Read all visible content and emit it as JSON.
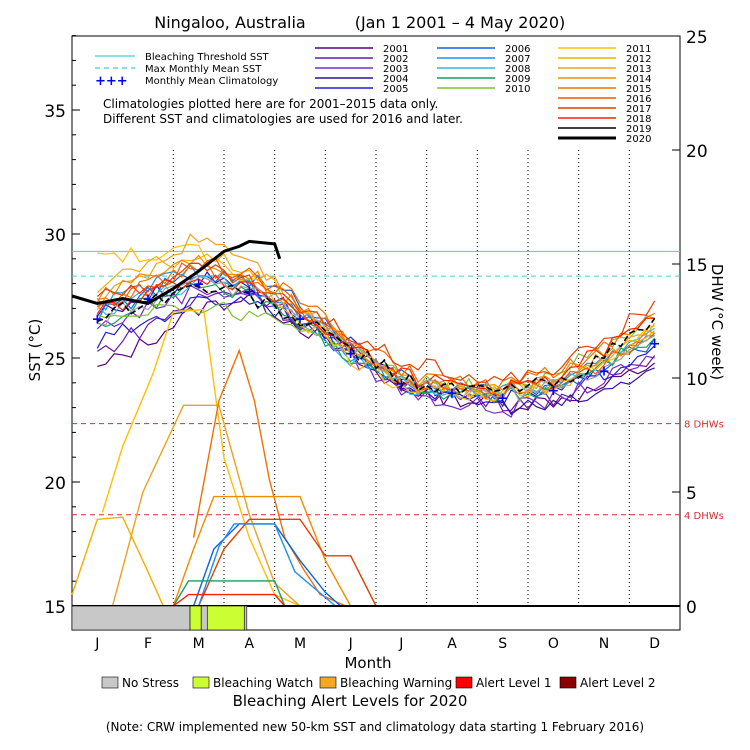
{
  "chart_data": {
    "type": "line",
    "title": "Ningaloo, Australia",
    "date_range": "(Jan 1 2001 – 4 May 2020)",
    "xlabel": "Month",
    "ylabel_left": "SST (°C)",
    "ylabel_right": "DHW (°C week)",
    "months": [
      "J",
      "F",
      "M",
      "A",
      "M",
      "J",
      "J",
      "A",
      "S",
      "O",
      "N",
      "D"
    ],
    "y_left": {
      "min": 15,
      "max": 39,
      "ticks": [
        15,
        20,
        25,
        30,
        35
      ]
    },
    "y_right": {
      "min": 0,
      "max": 25,
      "ticks": [
        0,
        5,
        10,
        15,
        20,
        25
      ]
    },
    "bleaching_threshold_sst": 29.3,
    "max_monthly_mean_sst": 28.3,
    "dhw_thresholds": [
      {
        "value": 8,
        "label": "8 DHWs"
      },
      {
        "value": 4,
        "label": "4 DHWs"
      }
    ],
    "legend_reference": [
      {
        "label": "Bleaching Threshold SST",
        "color": "#40d0d0",
        "style": "solid"
      },
      {
        "label": "Max Monthly Mean SST",
        "color": "#40d0d0",
        "style": "dashed"
      },
      {
        "label": "Monthly Mean Climatology",
        "color": "#0000ff",
        "style": "plus"
      }
    ],
    "note_lines": [
      "Climatologies plotted here are for 2001–2015 data only.",
      "Different SST and climatologies are used for 2016 and later."
    ],
    "climatology": [
      26.6,
      27.4,
      28.0,
      27.7,
      26.6,
      25.2,
      24.0,
      23.6,
      23.4,
      23.7,
      24.5,
      25.6
    ],
    "series": [
      {
        "name": "2001",
        "color": "#5a0080",
        "sst": [
          24.5,
          25.7,
          27.0,
          27.5,
          26.3,
          25.0,
          23.8,
          23.4,
          23.1,
          23.3,
          23.8,
          24.8
        ]
      },
      {
        "name": "2002",
        "color": "#6a1aa8",
        "sst": [
          25.2,
          26.3,
          27.4,
          27.8,
          26.4,
          25.3,
          23.8,
          23.5,
          23.2,
          23.4,
          24.2,
          25.1
        ]
      },
      {
        "name": "2003",
        "color": "#7a2ac8",
        "sst": [
          26.2,
          27.0,
          27.8,
          27.6,
          26.5,
          25.0,
          23.7,
          23.2,
          22.9,
          23.3,
          24.1,
          25.0
        ]
      },
      {
        "name": "2004",
        "color": "#3010a0",
        "sst": [
          26.8,
          27.5,
          28.2,
          28.0,
          26.8,
          25.2,
          24.0,
          23.4,
          23.1,
          23.0,
          23.6,
          24.6
        ]
      },
      {
        "name": "2005",
        "color": "#2020d0",
        "sst": [
          25.6,
          26.5,
          27.3,
          27.4,
          26.6,
          25.5,
          24.1,
          23.5,
          23.3,
          23.6,
          24.4,
          25.5
        ]
      },
      {
        "name": "2006",
        "color": "#1060e0",
        "sst": [
          26.7,
          27.6,
          28.4,
          28.2,
          27.3,
          25.5,
          24.2,
          23.8,
          23.5,
          23.7,
          24.5,
          25.8
        ]
      },
      {
        "name": "2007",
        "color": "#2090f0",
        "sst": [
          27.1,
          27.9,
          28.6,
          27.8,
          26.8,
          25.2,
          24.0,
          23.7,
          23.6,
          23.9,
          24.8,
          25.9
        ]
      },
      {
        "name": "2008",
        "color": "#30b8e0",
        "sst": [
          26.9,
          27.5,
          28.1,
          27.9,
          26.6,
          25.0,
          23.9,
          23.5,
          23.6,
          24.0,
          25.0,
          26.2
        ]
      },
      {
        "name": "2009",
        "color": "#10a060",
        "sst": [
          26.3,
          27.2,
          27.9,
          27.5,
          26.4,
          25.1,
          24.0,
          23.6,
          23.4,
          23.8,
          24.8,
          25.8
        ]
      },
      {
        "name": "2010",
        "color": "#80c030",
        "sst": [
          26.7,
          27.0,
          27.1,
          26.8,
          26.3,
          25.4,
          24.2,
          23.9,
          23.7,
          24.3,
          25.4,
          26.6
        ]
      },
      {
        "name": "2011",
        "color": "#ffc000",
        "sst": [
          29.3,
          29.0,
          29.4,
          28.2,
          26.6,
          25.0,
          23.9,
          23.8,
          23.6,
          24.0,
          24.9,
          26.3
        ]
      },
      {
        "name": "2012",
        "color": "#f0b000",
        "sst": [
          27.8,
          28.7,
          29.1,
          28.6,
          27.0,
          25.4,
          24.0,
          23.6,
          23.5,
          23.8,
          24.8,
          26.1
        ]
      },
      {
        "name": "2013",
        "color": "#f0a020",
        "sst": [
          27.2,
          28.5,
          30.0,
          29.1,
          27.2,
          25.5,
          24.4,
          23.8,
          23.6,
          24.1,
          25.0,
          26.4
        ]
      },
      {
        "name": "2014",
        "color": "#f08c00",
        "sst": [
          27.6,
          28.4,
          29.0,
          28.4,
          27.0,
          25.6,
          24.2,
          23.9,
          23.7,
          24.2,
          25.0,
          26.0
        ]
      },
      {
        "name": "2015",
        "color": "#f07000",
        "sst": [
          27.1,
          28.0,
          28.6,
          28.3,
          27.4,
          25.8,
          24.5,
          24.0,
          23.8,
          24.4,
          25.3,
          26.8
        ]
      },
      {
        "name": "2016",
        "color": "#f05a00",
        "sst": [
          26.9,
          27.8,
          28.9,
          28.3,
          27.1,
          25.6,
          24.1,
          23.8,
          23.6,
          24.0,
          24.8,
          26.0
        ]
      },
      {
        "name": "2017",
        "color": "#e04000",
        "sst": [
          27.4,
          28.0,
          28.7,
          28.1,
          27.0,
          25.9,
          25.0,
          24.5,
          24.0,
          24.6,
          25.6,
          27.3
        ]
      },
      {
        "name": "2018",
        "color": "#ff2000",
        "sst": [
          26.8,
          27.6,
          28.3,
          27.9,
          26.9,
          25.6,
          24.3,
          23.9,
          23.7,
          24.2,
          25.3,
          26.6
        ]
      },
      {
        "name": "2019",
        "color": "#a0a0a0",
        "sst": [
          26.5,
          27.3,
          28.0,
          27.7,
          26.8,
          25.3,
          24.0,
          23.6,
          23.5,
          23.8,
          24.6,
          25.9
        ]
      },
      {
        "name": "2020",
        "color": "#000000",
        "sst": [
          27.3,
          27.2,
          28.3,
          29.5
        ],
        "dashed_name": "2019"
      }
    ],
    "series_2019_dashed": {
      "name": "2019",
      "color": "#000000",
      "sst": [
        26.7,
        27.3,
        27.9,
        27.5,
        26.5,
        25.4,
        24.2,
        23.7,
        23.7,
        24.0,
        25.0,
        26.6
      ]
    },
    "series_2020_final": {
      "name": "2020",
      "color": "#000000",
      "x": [
        0.0,
        0.5,
        1.0,
        1.5,
        2.0,
        2.5,
        3.0,
        3.3,
        3.5,
        4.0,
        4.1
      ],
      "sst": [
        27.5,
        27.2,
        27.4,
        27.2,
        27.8,
        28.5,
        29.3,
        29.5,
        29.7,
        29.6,
        29.0
      ]
    },
    "dhw_series": [
      {
        "name": "2011",
        "color": "#ffc000",
        "x": [
          0.6,
          1.0,
          1.6,
          2.0,
          2.6,
          3.0,
          3.5,
          4.0,
          4.5
        ],
        "dhw": [
          4.1,
          7.0,
          10.2,
          12.9,
          13.0,
          6.5,
          3.0,
          0.5,
          0.0
        ]
      },
      {
        "name": "2013",
        "color": "#f0a020",
        "x": [
          0.8,
          1.4,
          2.2,
          2.9,
          3.5,
          4.0,
          4.5
        ],
        "dhw": [
          0.0,
          5.0,
          8.8,
          8.8,
          4.0,
          1.0,
          0.0
        ]
      },
      {
        "name": "2015",
        "color": "#f07000",
        "x": [
          2.4,
          2.9,
          3.3,
          3.6,
          3.9,
          4.2,
          4.6,
          4.9,
          5.4
        ],
        "dhw": [
          3.0,
          9.0,
          11.2,
          9.0,
          5.5,
          3.0,
          1.5,
          0.5,
          0.0
        ]
      },
      {
        "name": "2014",
        "color": "#f08c00",
        "x": [
          2.0,
          2.4,
          2.8,
          3.2,
          4.5,
          5.0,
          5.5
        ],
        "dhw": [
          0.0,
          2.5,
          4.8,
          4.8,
          4.8,
          2.0,
          0.0
        ]
      },
      {
        "name": "2017",
        "color": "#e04000",
        "x": [
          2.5,
          3.0,
          3.5,
          4.5,
          5.0,
          5.5,
          6.0
        ],
        "dhw": [
          0.0,
          2.5,
          3.8,
          3.8,
          2.2,
          2.2,
          0.0
        ]
      },
      {
        "name": "2006",
        "color": "#1060e0",
        "x": [
          2.4,
          2.8,
          3.3,
          4.0,
          4.5,
          5.0,
          5.3
        ],
        "dhw": [
          0.0,
          2.5,
          3.6,
          3.6,
          2.0,
          0.6,
          0.0
        ]
      },
      {
        "name": "2007",
        "color": "#2090f0",
        "x": [
          2.5,
          2.9,
          3.2,
          4.0,
          4.4,
          5.2
        ],
        "dhw": [
          0.0,
          2.6,
          3.6,
          3.6,
          1.5,
          0.0
        ]
      },
      {
        "name": "2009",
        "color": "#10a060",
        "x": [
          2.0,
          2.3,
          3.0,
          4.0,
          4.2
        ],
        "dhw": [
          0.0,
          1.1,
          1.1,
          1.1,
          0.0
        ]
      },
      {
        "name": "2018",
        "color": "#ff2000",
        "x": [
          2.0,
          2.3,
          3.0,
          4.0,
          4.2
        ],
        "dhw": [
          0.0,
          0.5,
          0.5,
          0.5,
          0.0
        ]
      },
      {
        "name": "2012",
        "color": "#f0b000",
        "x": [
          0.0,
          0.5,
          1.0,
          1.5,
          1.8
        ],
        "dhw": [
          0.5,
          3.8,
          3.9,
          1.5,
          0.0
        ]
      }
    ],
    "alert_bar": [
      {
        "level": "No Stress",
        "color": "#c8c8c8",
        "start": 0.0,
        "end": 2.33
      },
      {
        "level": "Bleaching Watch",
        "color": "#ccff33",
        "start": 2.33,
        "end": 2.55
      },
      {
        "level": "No Stress",
        "color": "#c8c8c8",
        "start": 2.55,
        "end": 2.67
      },
      {
        "level": "Bleaching Watch",
        "color": "#ccff33",
        "start": 2.67,
        "end": 3.4
      },
      {
        "level": "No Stress",
        "color": "#c8c8c8",
        "start": 3.4,
        "end": 3.45
      }
    ],
    "alert_legend_title": "Bleaching Alert Levels for 2020",
    "alert_legend": [
      {
        "label": "No Stress",
        "color": "#c8c8c8"
      },
      {
        "label": "Bleaching Watch",
        "color": "#ccff33"
      },
      {
        "label": "Bleaching Warning",
        "color": "#f5a623"
      },
      {
        "label": "Alert Level 1",
        "color": "#ff0000"
      },
      {
        "label": "Alert Level 2",
        "color": "#8b0000"
      }
    ],
    "footnote": "(Note: CRW implemented new 50-km SST and climatology data starting 1 February 2016)"
  }
}
